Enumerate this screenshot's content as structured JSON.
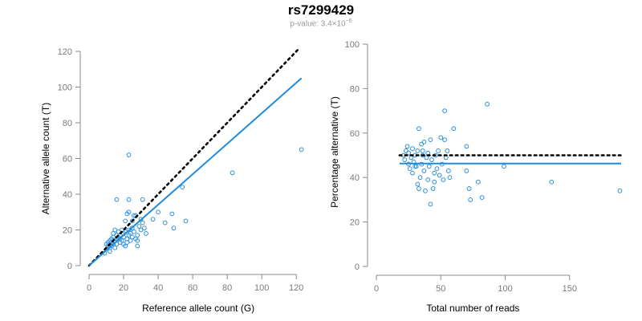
{
  "header": {
    "title": "rs7299429",
    "subtitle_prefix": "p-value: 3.4×10",
    "subtitle_exp": "−6"
  },
  "colors": {
    "points": "#2b8fe0",
    "fit": "#1e8be0",
    "reference": "#000000"
  },
  "chart_data": [
    {
      "type": "scatter",
      "xlabel": "Reference allele count (G)",
      "ylabel": "Alternative allele count (T)",
      "xlim": [
        0,
        125
      ],
      "ylim": [
        0,
        120
      ],
      "xticks": [
        0,
        20,
        40,
        60,
        80,
        100,
        120
      ],
      "yticks": [
        0,
        20,
        40,
        60,
        80,
        100,
        120
      ],
      "reference_line": {
        "style": "dotted",
        "points": [
          [
            0,
            0
          ],
          [
            122,
            122
          ]
        ]
      },
      "fit_line": {
        "style": "solid",
        "points": [
          [
            0,
            0
          ],
          [
            123,
            105
          ]
        ]
      },
      "points": [
        [
          10,
          12
        ],
        [
          11,
          11
        ],
        [
          11,
          13
        ],
        [
          12,
          10
        ],
        [
          12,
          12
        ],
        [
          12,
          14
        ],
        [
          13,
          11
        ],
        [
          13,
          13
        ],
        [
          13,
          15
        ],
        [
          14,
          12
        ],
        [
          14,
          16
        ],
        [
          14,
          18
        ],
        [
          15,
          14
        ],
        [
          15,
          20
        ],
        [
          16,
          15
        ],
        [
          16,
          17
        ],
        [
          16,
          12
        ],
        [
          17,
          16
        ],
        [
          17,
          19
        ],
        [
          18,
          13
        ],
        [
          18,
          15
        ],
        [
          18,
          17
        ],
        [
          19,
          14
        ],
        [
          19,
          20
        ],
        [
          20,
          12
        ],
        [
          20,
          16
        ],
        [
          20,
          18
        ],
        [
          21,
          19
        ],
        [
          21,
          11
        ],
        [
          22,
          13
        ],
        [
          22,
          15
        ],
        [
          23,
          17
        ],
        [
          23,
          20
        ],
        [
          24,
          14
        ],
        [
          24,
          18
        ],
        [
          25,
          16
        ],
        [
          25,
          21
        ],
        [
          26,
          19
        ],
        [
          27,
          15
        ],
        [
          27,
          28
        ],
        [
          28,
          14
        ],
        [
          28,
          17
        ],
        [
          28,
          11
        ],
        [
          29,
          22
        ],
        [
          30,
          26
        ],
        [
          30,
          20
        ],
        [
          31,
          24
        ],
        [
          32,
          21
        ],
        [
          33,
          18
        ],
        [
          21,
          25
        ],
        [
          22,
          29
        ],
        [
          23,
          30
        ],
        [
          25,
          25
        ],
        [
          26,
          28
        ],
        [
          16,
          37
        ],
        [
          23,
          37
        ],
        [
          31,
          37
        ],
        [
          23,
          62
        ],
        [
          37,
          26
        ],
        [
          40,
          30
        ],
        [
          44,
          24
        ],
        [
          48,
          29
        ],
        [
          49,
          21
        ],
        [
          54,
          44
        ],
        [
          56,
          25
        ],
        [
          83,
          52
        ],
        [
          123,
          65
        ],
        [
          12,
          8
        ],
        [
          9,
          7
        ],
        [
          15,
          10
        ]
      ]
    },
    {
      "type": "scatter",
      "xlabel": "Total number of reads",
      "ylabel": "Percentage alternative (T)",
      "xlim": [
        0,
        190
      ],
      "ylim": [
        0,
        100
      ],
      "xticks": [
        0,
        50,
        100,
        150
      ],
      "yticks": [
        0,
        20,
        40,
        60,
        80,
        100
      ],
      "reference_line": {
        "style": "dotted",
        "value": 50,
        "x_range": [
          18,
          190
        ]
      },
      "fit_line": {
        "style": "solid",
        "value": 46.3,
        "x_range": [
          18,
          190
        ]
      },
      "points": [
        [
          21,
          50
        ],
        [
          22,
          48
        ],
        [
          23,
          52
        ],
        [
          24,
          54
        ],
        [
          25,
          46
        ],
        [
          25,
          51
        ],
        [
          26,
          44
        ],
        [
          27,
          49
        ],
        [
          28,
          53
        ],
        [
          28,
          42
        ],
        [
          29,
          47
        ],
        [
          30,
          50
        ],
        [
          31,
          45
        ],
        [
          32,
          52
        ],
        [
          32,
          37
        ],
        [
          33,
          35
        ],
        [
          34,
          40
        ],
        [
          35,
          55
        ],
        [
          35,
          46
        ],
        [
          36,
          50
        ],
        [
          37,
          43
        ],
        [
          37,
          56
        ],
        [
          38,
          34
        ],
        [
          39,
          49
        ],
        [
          40,
          51
        ],
        [
          40,
          39
        ],
        [
          41,
          45
        ],
        [
          42,
          57
        ],
        [
          42,
          28
        ],
        [
          43,
          48
        ],
        [
          44,
          35
        ],
        [
          45,
          42
        ],
        [
          46,
          50
        ],
        [
          47,
          44
        ],
        [
          48,
          52
        ],
        [
          49,
          41
        ],
        [
          50,
          58
        ],
        [
          51,
          46
        ],
        [
          52,
          39
        ],
        [
          53,
          57
        ],
        [
          54,
          49
        ],
        [
          55,
          52
        ],
        [
          56,
          43
        ],
        [
          57,
          40
        ],
        [
          60,
          62
        ],
        [
          33,
          62
        ],
        [
          53,
          70
        ],
        [
          86,
          73
        ],
        [
          70,
          54
        ],
        [
          70,
          43
        ],
        [
          72,
          35
        ],
        [
          73,
          30
        ],
        [
          79,
          38
        ],
        [
          82,
          31
        ],
        [
          99,
          45
        ],
        [
          136,
          38
        ],
        [
          189,
          34
        ],
        [
          45,
          38
        ],
        [
          30,
          45
        ],
        [
          36,
          52
        ]
      ]
    }
  ]
}
